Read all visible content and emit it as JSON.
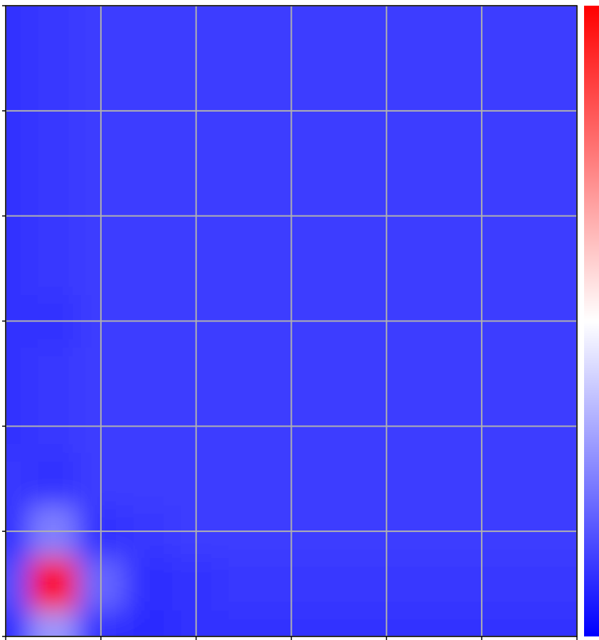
{
  "chart_data": {
    "type": "contour",
    "x": [
      0,
      0.5,
      1,
      1.5,
      2,
      2.5,
      3,
      3.5,
      4,
      4.5,
      5,
      5.5,
      6
    ],
    "y": [
      0,
      0.5,
      1,
      1.5,
      2,
      2.5,
      3,
      3.5,
      4,
      4.5,
      5,
      5.5,
      6
    ],
    "z": [
      [
        0.08,
        0.3,
        0.1,
        0.08,
        0.1,
        0.1,
        0.1,
        0.1,
        0.1,
        0.1,
        0.1,
        0.1,
        0.1
      ],
      [
        0.15,
        1.0,
        0.2,
        0.09,
        0.1,
        0.11,
        0.11,
        0.11,
        0.11,
        0.11,
        0.11,
        0.11,
        0.11
      ],
      [
        0.1,
        0.25,
        0.1,
        0.11,
        0.12,
        0.12,
        0.12,
        0.12,
        0.12,
        0.12,
        0.12,
        0.12,
        0.12
      ],
      [
        0.11,
        0.1,
        0.12,
        0.12,
        0.12,
        0.12,
        0.12,
        0.12,
        0.12,
        0.12,
        0.12,
        0.12,
        0.12
      ],
      [
        0.1,
        0.11,
        0.12,
        0.12,
        0.12,
        0.12,
        0.12,
        0.12,
        0.12,
        0.12,
        0.12,
        0.12,
        0.12
      ],
      [
        0.1,
        0.11,
        0.12,
        0.12,
        0.12,
        0.12,
        0.12,
        0.12,
        0.12,
        0.12,
        0.12,
        0.12,
        0.12
      ],
      [
        0.1,
        0.1,
        0.12,
        0.12,
        0.12,
        0.12,
        0.12,
        0.12,
        0.12,
        0.12,
        0.12,
        0.12,
        0.12
      ],
      [
        0.1,
        0.11,
        0.12,
        0.12,
        0.12,
        0.12,
        0.12,
        0.12,
        0.12,
        0.12,
        0.12,
        0.12,
        0.12
      ],
      [
        0.1,
        0.11,
        0.12,
        0.12,
        0.12,
        0.12,
        0.12,
        0.12,
        0.12,
        0.12,
        0.12,
        0.12,
        0.12
      ],
      [
        0.1,
        0.11,
        0.12,
        0.12,
        0.12,
        0.12,
        0.12,
        0.12,
        0.12,
        0.12,
        0.12,
        0.12,
        0.12
      ],
      [
        0.1,
        0.11,
        0.12,
        0.12,
        0.12,
        0.12,
        0.12,
        0.12,
        0.12,
        0.12,
        0.12,
        0.12,
        0.12
      ],
      [
        0.1,
        0.11,
        0.12,
        0.12,
        0.12,
        0.12,
        0.12,
        0.12,
        0.12,
        0.12,
        0.12,
        0.12,
        0.12
      ],
      [
        0.1,
        0.11,
        0.12,
        0.12,
        0.12,
        0.12,
        0.12,
        0.12,
        0.12,
        0.12,
        0.12,
        0.12,
        0.12
      ]
    ],
    "zlim": [
      0,
      1
    ],
    "colormap": [
      "#0000ff",
      "#ffffff",
      "#ff0000"
    ],
    "xlim": [
      0,
      6
    ],
    "ylim": [
      0,
      6
    ],
    "xticks": [
      0,
      1,
      2,
      3,
      4,
      5,
      6
    ],
    "yticks": [
      0,
      1,
      2,
      3,
      4,
      5,
      6
    ],
    "grid": true
  }
}
